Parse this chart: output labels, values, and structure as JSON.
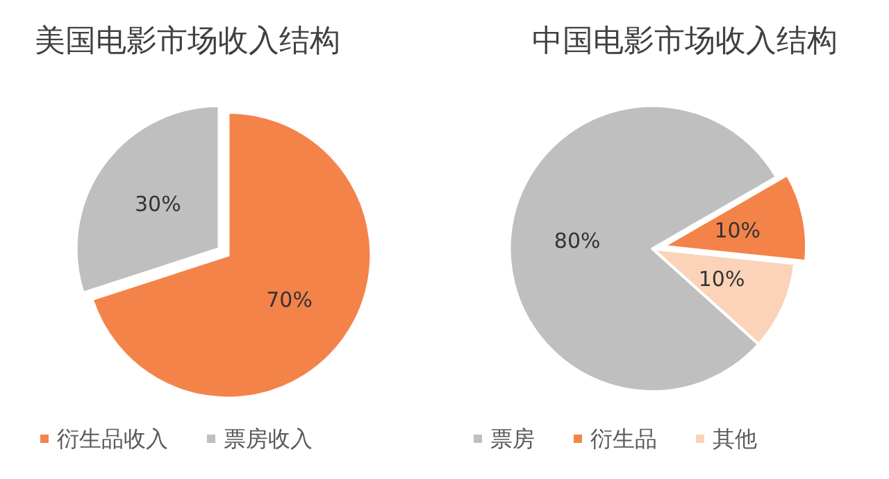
{
  "chart_data": [
    {
      "type": "pie",
      "title": "美国电影市场收入结构",
      "categories": [
        "衍生品收入",
        "票房收入"
      ],
      "values": [
        70,
        30
      ],
      "colors": [
        "#f4834a",
        "#bfbfbf"
      ],
      "value_labels": [
        "70%",
        "30%"
      ],
      "legend": "bottom"
    },
    {
      "type": "pie",
      "title": "中国电影市场收入结构",
      "categories": [
        "票房",
        "衍生品",
        "其他"
      ],
      "values": [
        80,
        10,
        10
      ],
      "colors": [
        "#bfbfbf",
        "#f4834a",
        "#fbd3b9"
      ],
      "value_labels": [
        "80%",
        "10%",
        "10%"
      ],
      "legend": "bottom"
    }
  ]
}
